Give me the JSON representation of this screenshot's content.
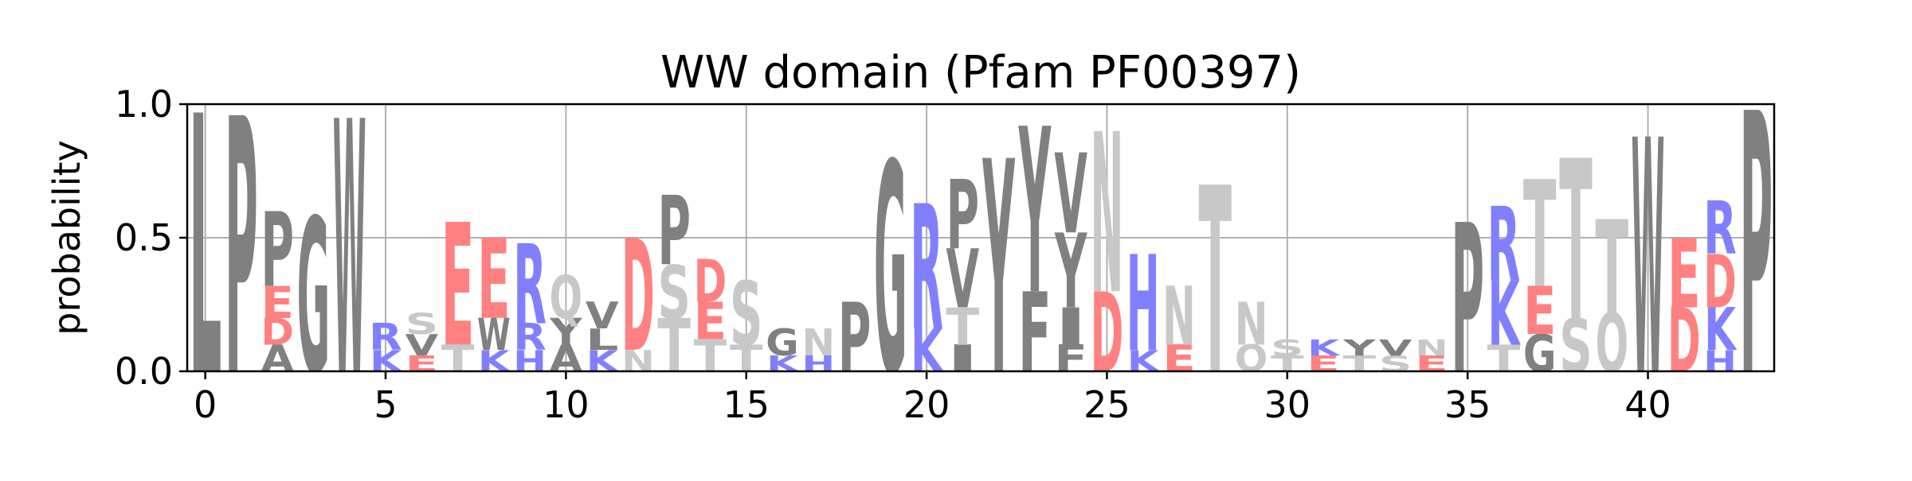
{
  "chart_data": {
    "type": "sequence-logo",
    "title": "WW domain (Pfam PF00397)",
    "xlabel": "",
    "ylabel": "probability",
    "xlim": [
      -0.5,
      43.5
    ],
    "ylim": [
      0,
      1
    ],
    "x_ticks": [
      0,
      5,
      10,
      15,
      20,
      25,
      30,
      35,
      40
    ],
    "y_ticks": [
      0.0,
      0.5,
      1.0
    ],
    "grid": true,
    "colors": {
      "hydrophobic": "#808080",
      "neutral": "#c8c8c8",
      "acidic": "#ff8080",
      "basic": "#8080ff",
      "grid": "#b0b0b0"
    },
    "positions": [
      {
        "x": 0,
        "letters": [
          {
            "aa": "L",
            "p": 0.97
          }
        ]
      },
      {
        "x": 1,
        "letters": [
          {
            "aa": "P",
            "p": 0.96
          }
        ]
      },
      {
        "x": 2,
        "letters": [
          {
            "aa": "P",
            "p": 0.28
          },
          {
            "aa": "E",
            "p": 0.12
          },
          {
            "aa": "A",
            "p": 0.1
          },
          {
            "aa": "D",
            "p": 0.1
          }
        ]
      },
      {
        "x": 3,
        "letters": [
          {
            "aa": "G",
            "p": 0.58
          }
        ]
      },
      {
        "x": 4,
        "letters": [
          {
            "aa": "W",
            "p": 0.95
          }
        ]
      },
      {
        "x": 5,
        "letters": [
          {
            "aa": "R",
            "p": 0.1
          },
          {
            "aa": "K",
            "p": 0.08
          }
        ]
      },
      {
        "x": 6,
        "letters": [
          {
            "aa": "V",
            "p": 0.08
          },
          {
            "aa": "S",
            "p": 0.08
          },
          {
            "aa": "E",
            "p": 0.06
          }
        ]
      },
      {
        "x": 7,
        "letters": [
          {
            "aa": "E",
            "p": 0.46
          },
          {
            "aa": "T",
            "p": 0.1
          }
        ]
      },
      {
        "x": 8,
        "letters": [
          {
            "aa": "E",
            "p": 0.3
          },
          {
            "aa": "W",
            "p": 0.12
          },
          {
            "aa": "K",
            "p": 0.08
          }
        ]
      },
      {
        "x": 9,
        "letters": [
          {
            "aa": "R",
            "p": 0.3
          },
          {
            "aa": "H",
            "p": 0.08
          },
          {
            "aa": "R",
            "p": 0.1
          }
        ]
      },
      {
        "x": 10,
        "letters": [
          {
            "aa": "Q",
            "p": 0.16
          },
          {
            "aa": "A",
            "p": 0.1
          },
          {
            "aa": "Y",
            "p": 0.1
          }
        ]
      },
      {
        "x": 11,
        "letters": [
          {
            "aa": "V",
            "p": 0.1
          },
          {
            "aa": "K",
            "p": 0.08
          },
          {
            "aa": "L",
            "p": 0.08
          }
        ]
      },
      {
        "x": 12,
        "letters": [
          {
            "aa": "D",
            "p": 0.42
          },
          {
            "aa": "N",
            "p": 0.08
          }
        ]
      },
      {
        "x": 13,
        "letters": [
          {
            "aa": "P",
            "p": 0.26
          },
          {
            "aa": "T",
            "p": 0.2
          },
          {
            "aa": "S",
            "p": 0.2
          }
        ]
      },
      {
        "x": 14,
        "letters": [
          {
            "aa": "D",
            "p": 0.16
          },
          {
            "aa": "E",
            "p": 0.14
          },
          {
            "aa": "T",
            "p": 0.12
          }
        ]
      },
      {
        "x": 15,
        "letters": [
          {
            "aa": "S",
            "p": 0.24
          },
          {
            "aa": "T",
            "p": 0.1
          }
        ]
      },
      {
        "x": 16,
        "letters": [
          {
            "aa": "G",
            "p": 0.1
          },
          {
            "aa": "K",
            "p": 0.06
          }
        ]
      },
      {
        "x": 17,
        "letters": [
          {
            "aa": "N",
            "p": 0.1
          },
          {
            "aa": "H",
            "p": 0.06
          }
        ]
      },
      {
        "x": 18,
        "letters": [
          {
            "aa": "P",
            "p": 0.26
          }
        ]
      },
      {
        "x": 19,
        "letters": [
          {
            "aa": "G",
            "p": 0.79
          }
        ]
      },
      {
        "x": 20,
        "letters": [
          {
            "aa": "R",
            "p": 0.47
          },
          {
            "aa": "K",
            "p": 0.16
          }
        ]
      },
      {
        "x": 21,
        "letters": [
          {
            "aa": "V",
            "p": 0.22
          },
          {
            "aa": "P",
            "p": 0.26
          },
          {
            "aa": "T",
            "p": 0.14
          },
          {
            "aa": "I",
            "p": 0.1
          }
        ]
      },
      {
        "x": 22,
        "letters": [
          {
            "aa": "Y",
            "p": 0.8
          }
        ]
      },
      {
        "x": 23,
        "letters": [
          {
            "aa": "Y",
            "p": 0.62
          },
          {
            "aa": "F",
            "p": 0.3
          }
        ]
      },
      {
        "x": 24,
        "letters": [
          {
            "aa": "V",
            "p": 0.3
          },
          {
            "aa": "Y",
            "p": 0.28
          },
          {
            "aa": "I",
            "p": 0.14
          },
          {
            "aa": "F",
            "p": 0.1
          }
        ]
      },
      {
        "x": 25,
        "letters": [
          {
            "aa": "N",
            "p": 0.6
          },
          {
            "aa": "D",
            "p": 0.3
          }
        ]
      },
      {
        "x": 26,
        "letters": [
          {
            "aa": "H",
            "p": 0.36
          },
          {
            "aa": "K",
            "p": 0.08
          }
        ]
      },
      {
        "x": 27,
        "letters": [
          {
            "aa": "N",
            "p": 0.22
          },
          {
            "aa": "E",
            "p": 0.1
          }
        ]
      },
      {
        "x": 28,
        "letters": [
          {
            "aa": "T",
            "p": 0.7
          }
        ]
      },
      {
        "x": 29,
        "letters": [
          {
            "aa": "N",
            "p": 0.16
          },
          {
            "aa": "Q",
            "p": 0.1
          }
        ]
      },
      {
        "x": 30,
        "letters": [
          {
            "aa": "T",
            "p": 0.06
          },
          {
            "aa": "S",
            "p": 0.06
          }
        ]
      },
      {
        "x": 31,
        "letters": [
          {
            "aa": "E",
            "p": 0.06
          },
          {
            "aa": "K",
            "p": 0.06
          }
        ]
      },
      {
        "x": 32,
        "letters": [
          {
            "aa": "T",
            "p": 0.06
          },
          {
            "aa": "Y",
            "p": 0.06
          }
        ]
      },
      {
        "x": 33,
        "letters": [
          {
            "aa": "S",
            "p": 0.06
          },
          {
            "aa": "V",
            "p": 0.06
          }
        ]
      },
      {
        "x": 34,
        "letters": [
          {
            "aa": "E",
            "p": 0.06
          },
          {
            "aa": "N",
            "p": 0.06
          }
        ]
      },
      {
        "x": 35,
        "letters": [
          {
            "aa": "P",
            "p": 0.56
          }
        ]
      },
      {
        "x": 36,
        "letters": [
          {
            "aa": "R",
            "p": 0.28
          },
          {
            "aa": "K",
            "p": 0.24
          },
          {
            "aa": "T",
            "p": 0.1
          }
        ]
      },
      {
        "x": 37,
        "letters": [
          {
            "aa": "T",
            "p": 0.4
          },
          {
            "aa": "E",
            "p": 0.18
          },
          {
            "aa": "G",
            "p": 0.14
          }
        ]
      },
      {
        "x": 38,
        "letters": [
          {
            "aa": "T",
            "p": 0.6
          },
          {
            "aa": "S",
            "p": 0.2
          }
        ]
      },
      {
        "x": 39,
        "letters": [
          {
            "aa": "T",
            "p": 0.35
          },
          {
            "aa": "Q",
            "p": 0.22
          }
        ]
      },
      {
        "x": 40,
        "letters": [
          {
            "aa": "W",
            "p": 0.88
          }
        ]
      },
      {
        "x": 41,
        "letters": [
          {
            "aa": "E",
            "p": 0.26
          },
          {
            "aa": "D",
            "p": 0.24
          }
        ]
      },
      {
        "x": 42,
        "letters": [
          {
            "aa": "D",
            "p": 0.2
          },
          {
            "aa": "R",
            "p": 0.2
          },
          {
            "aa": "K",
            "p": 0.16
          },
          {
            "aa": "H",
            "p": 0.08
          }
        ]
      },
      {
        "x": 43,
        "letters": [
          {
            "aa": "P",
            "p": 0.98
          }
        ]
      }
    ]
  }
}
